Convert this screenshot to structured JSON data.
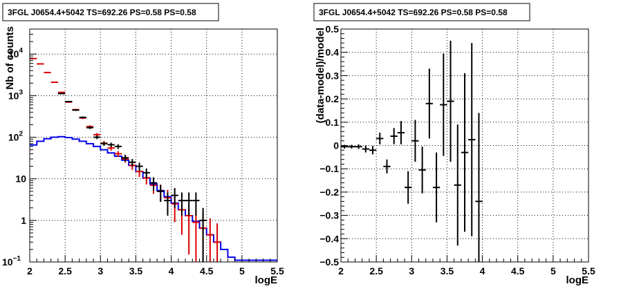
{
  "chart_data": [
    {
      "type": "histogram",
      "title": "3FGL J0654.4+5042 TS=692.26 PS=0.58 PS=0.58",
      "xlabel": "logE",
      "ylabel": "Nb of counts",
      "xlim": [
        2,
        5.5
      ],
      "ylim": [
        0.1,
        40000
      ],
      "yscale": "log",
      "grid": true,
      "xticks": [
        "2",
        "2.5",
        "3",
        "3.5",
        "4",
        "4.5",
        "5",
        "5.5"
      ],
      "yticks": [
        "1",
        "10",
        "10",
        "10",
        "10"
      ],
      "yticks_super": [
        "",
        "",
        "2",
        "3",
        "4"
      ],
      "ytick_values": [
        1,
        10,
        100,
        1000,
        10000
      ],
      "ytick_minor_labels": [
        "10",
        "1"
      ],
      "bin_edges": [
        2.0,
        2.1,
        2.2,
        2.3,
        2.4,
        2.5,
        2.6,
        2.7,
        2.8,
        2.9,
        3.0,
        3.1,
        3.2,
        3.3,
        3.4,
        3.5,
        3.6,
        3.7,
        3.8,
        3.9,
        4.0,
        4.1,
        4.2,
        4.3,
        4.4,
        4.5,
        4.6,
        4.7,
        4.8,
        4.9,
        5.0,
        5.1,
        5.2,
        5.3,
        5.4,
        5.5
      ],
      "series": [
        {
          "role": "blue model (diffuse background)",
          "color": "#0000ee",
          "values": [
            65,
            80,
            92,
            100,
            103,
            98,
            90,
            80,
            70,
            60,
            50,
            42,
            35,
            28,
            21,
            15,
            10.5,
            7.5,
            5.2,
            3.7,
            2.6,
            1.8,
            1.3,
            0.95,
            0.65,
            0.45,
            0.3,
            0.2,
            0.13,
            0.11,
            0.11,
            0.11,
            0.11,
            0.11,
            0.11
          ]
        },
        {
          "role": "red total model",
          "color": "#dd0000",
          "x": [
            2.05,
            2.15,
            2.25,
            2.35,
            2.45,
            2.55,
            2.65,
            2.75,
            2.85,
            2.95,
            3.05,
            3.15,
            3.25,
            3.35,
            3.45,
            3.55,
            3.65,
            3.75,
            3.85,
            3.95,
            4.05,
            4.15,
            4.25,
            4.35,
            4.45,
            4.55,
            4.65
          ],
          "y": [
            7800,
            5800,
            3600,
            2100,
            1200,
            700,
            460,
            290,
            180,
            115,
            72,
            55,
            40,
            30,
            21,
            15,
            10.5,
            7.0,
            5.0,
            3.5,
            2.5,
            1.8,
            1.3,
            0.9,
            0.65,
            0.45,
            0.3
          ],
          "err": [
            88,
            76,
            60,
            46,
            35,
            26,
            21,
            17,
            13.4,
            10.7,
            8.5,
            7.4,
            6.3,
            5.5,
            4.6,
            3.9,
            3.2,
            2.65,
            2.2,
            1.9,
            1.6,
            1.35,
            1.15,
            0.95,
            0.8,
            0.67,
            0.55
          ]
        },
        {
          "role": "black data points",
          "color": "#000000",
          "x": [
            2.45,
            2.55,
            2.65,
            2.75,
            2.85,
            2.95,
            3.05,
            3.15,
            3.25,
            3.35,
            3.45,
            3.55,
            3.65,
            3.75,
            3.85,
            3.95,
            4.05,
            4.15,
            4.25,
            4.35,
            4.45
          ],
          "y": [
            1120,
            720,
            450,
            300,
            170,
            100,
            70,
            66,
            60,
            32,
            25,
            20,
            14,
            8,
            5,
            3,
            4,
            3,
            3,
            3,
            1
          ],
          "err": [
            33,
            27,
            21,
            17,
            13,
            10,
            8,
            8,
            8,
            6,
            5,
            4.5,
            3.7,
            2.8,
            2.2,
            1.7,
            2,
            1.7,
            1.7,
            1.7,
            1
          ]
        }
      ]
    },
    {
      "type": "scatter",
      "title": "3FGL J0654.4+5042 TS=692.26 PS=0.58 PS=0.58",
      "xlabel": "logE",
      "ylabel": "(data-model)/model",
      "xlim": [
        2,
        5.5
      ],
      "ylim": [
        -0.5,
        0.5
      ],
      "grid": true,
      "xticks": [
        "2",
        "2.5",
        "3",
        "3.5",
        "4",
        "4.5",
        "5",
        "5.5"
      ],
      "yticks": [
        "−0.5",
        "−0.4",
        "−0.3",
        "−0.2",
        "−0.1",
        "0",
        "0.1",
        "0.2",
        "0.3",
        "0.4",
        "0.5"
      ],
      "ytick_values": [
        -0.5,
        -0.4,
        -0.3,
        -0.2,
        -0.1,
        0,
        0.1,
        0.2,
        0.3,
        0.4,
        0.5
      ],
      "points": {
        "x": [
          2.05,
          2.15,
          2.25,
          2.35,
          2.45,
          2.55,
          2.65,
          2.75,
          2.85,
          2.95,
          3.05,
          3.15,
          3.25,
          3.35,
          3.45,
          3.55,
          3.65,
          3.75,
          3.85,
          3.95
        ],
        "y": [
          -0.005,
          -0.005,
          -0.005,
          -0.015,
          -0.02,
          0.03,
          -0.09,
          0.04,
          0.055,
          -0.18,
          0.02,
          -0.105,
          0.18,
          -0.18,
          0.175,
          0.19,
          -0.17,
          -0.03,
          0.025,
          -0.24
        ],
        "err": [
          0.008,
          0.008,
          0.01,
          0.015,
          0.018,
          0.025,
          0.03,
          0.035,
          0.05,
          0.07,
          0.09,
          0.1,
          0.15,
          0.15,
          0.22,
          0.26,
          0.26,
          0.34,
          0.415,
          0.38
        ]
      }
    }
  ]
}
